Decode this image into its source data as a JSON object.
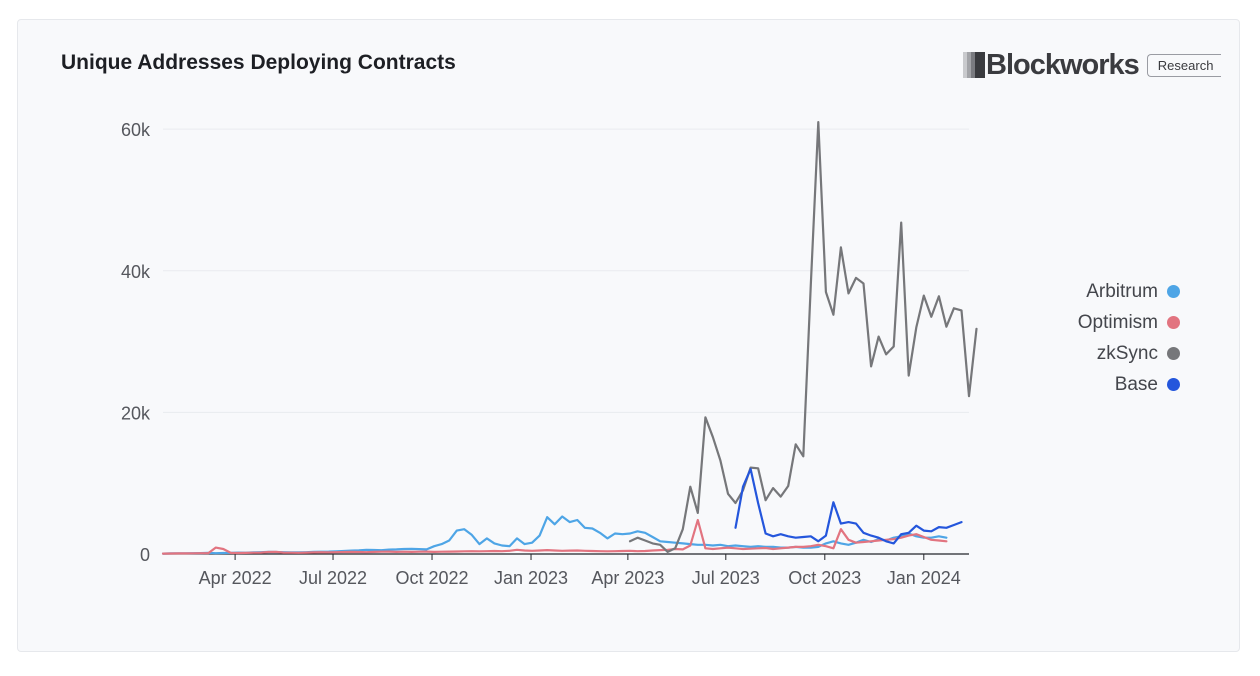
{
  "header": {
    "title": "Unique Addresses Deploying Contracts",
    "brand_name": "Blockworks",
    "brand_badge": "Research"
  },
  "chart_data": {
    "type": "line",
    "title": "Unique Addresses Deploying Contracts",
    "xlabel": "",
    "ylabel": "",
    "x_start": "2022-01-24",
    "x_step_days": 7,
    "x_end": "2024-02-12",
    "x_ticks": [
      "Apr 2022",
      "Jul 2022",
      "Oct 2022",
      "Jan 2023",
      "Apr 2023",
      "Jul 2023",
      "Oct 2023",
      "Jan 2024"
    ],
    "x_tick_dates": [
      "2022-04-01",
      "2022-07-01",
      "2022-10-01",
      "2023-01-01",
      "2023-04-01",
      "2023-07-01",
      "2023-10-01",
      "2024-01-01"
    ],
    "y_ticks": [
      "0",
      "20k",
      "40k",
      "60k"
    ],
    "y_tick_values": [
      0,
      20000,
      40000,
      60000
    ],
    "ylim": [
      0,
      62000
    ],
    "grid": true,
    "legend_position": "right",
    "series": [
      {
        "name": "Arbitrum",
        "color": "#4ea5e6",
        "start_index": 0,
        "values": [
          60,
          80,
          100,
          90,
          110,
          130,
          150,
          120,
          140,
          160,
          200,
          180,
          220,
          260,
          300,
          280,
          250,
          230,
          220,
          260,
          300,
          320,
          340,
          380,
          420,
          480,
          520,
          600,
          560,
          540,
          620,
          650,
          700,
          720,
          690,
          650,
          1100,
          1400,
          1900,
          3300,
          3500,
          2700,
          1400,
          2200,
          1500,
          1200,
          1100,
          2200,
          1400,
          1600,
          2600,
          5200,
          4200,
          5300,
          4500,
          4800,
          3700,
          3600,
          3000,
          2200,
          2900,
          2800,
          2900,
          3200,
          3000,
          2400,
          1800,
          1700,
          1600,
          1500,
          1400,
          1300,
          1300,
          1200,
          1300,
          1100,
          1200,
          1100,
          1000,
          1100,
          1000,
          1000,
          900,
          900,
          1000,
          900,
          900,
          1000,
          1500,
          1800,
          1500,
          1300,
          1600,
          2000,
          1700,
          2100,
          1900,
          2300,
          2500,
          2900,
          2500,
          2300,
          2300,
          2500,
          2300
        ]
      },
      {
        "name": "Optimism",
        "color": "#e27480",
        "start_index": 0,
        "values": [
          60,
          70,
          80,
          90,
          100,
          110,
          120,
          900,
          700,
          150,
          140,
          160,
          180,
          200,
          280,
          300,
          200,
          180,
          170,
          200,
          220,
          250,
          240,
          260,
          280,
          300,
          280,
          260,
          300,
          320,
          340,
          300,
          320,
          300,
          320,
          340,
          300,
          320,
          340,
          360,
          380,
          400,
          380,
          400,
          420,
          400,
          450,
          600,
          500,
          450,
          500,
          550,
          500,
          450,
          480,
          500,
          450,
          420,
          400,
          380,
          400,
          420,
          450,
          400,
          420,
          500,
          550,
          600,
          700,
          650,
          1200,
          4800,
          800,
          700,
          800,
          900,
          800,
          700,
          750,
          800,
          850,
          700,
          800,
          900,
          1000,
          1000,
          1100,
          1300,
          1100,
          800,
          3500,
          2000,
          1600,
          1700,
          1800,
          1900,
          2000,
          2100,
          2300,
          2600,
          2800,
          2400,
          2000,
          1900,
          1800
        ]
      },
      {
        "name": "zkSync",
        "color": "#76777a",
        "start_index": 62,
        "values": [
          1800,
          2300,
          1900,
          1500,
          1300,
          300,
          800,
          3500,
          9500,
          5800,
          19300,
          16500,
          13200,
          8500,
          7200,
          9000,
          12200,
          12100,
          7600,
          9300,
          8100,
          9600,
          15500,
          13800,
          38000,
          61000,
          37000,
          33800,
          43300,
          36800,
          39000,
          38200,
          26500,
          30700,
          28200,
          29300,
          46800,
          25200,
          32000,
          36500,
          33500,
          36400,
          32100,
          34700,
          34400,
          22300,
          31800
        ]
      },
      {
        "name": "Base",
        "color": "#2456dc",
        "start_index": 76,
        "values": [
          3700,
          9500,
          12000,
          7200,
          2900,
          2500,
          2800,
          2500,
          2300,
          2400,
          2500,
          1800,
          2600,
          7300,
          4300,
          4500,
          4300,
          3000,
          2600,
          2300,
          1800,
          1500,
          2800,
          3000,
          4000,
          3300,
          3200,
          3800,
          3700,
          4100,
          4500
        ]
      }
    ]
  }
}
